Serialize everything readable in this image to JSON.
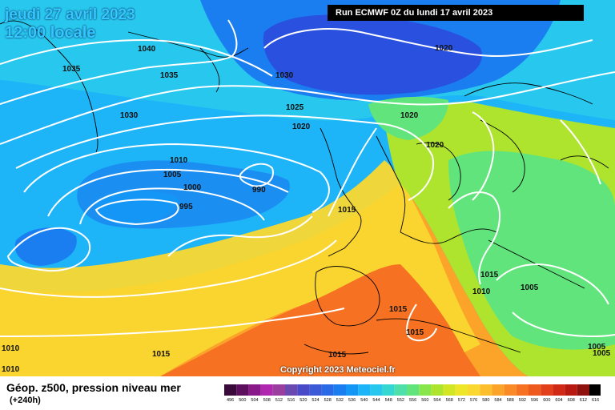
{
  "header": {
    "date_line1": "jeudi 27 avril 2023",
    "date_line2": "12:00 locale",
    "run_info": "Run ECMWF 0Z du lundi 17 avril 2023"
  },
  "footer": {
    "variable": "Géop. z500, pression niveau mer",
    "range": "(+240h)",
    "copyright": "Copyright 2023 Meteociel.fr"
  },
  "isobar_labels": [
    {
      "text": "1040"
    },
    {
      "text": "1035"
    },
    {
      "text": "1035"
    },
    {
      "text": "1030"
    },
    {
      "text": "1030"
    },
    {
      "text": "1025"
    },
    {
      "text": "1020"
    },
    {
      "text": "1020"
    },
    {
      "text": "1020"
    },
    {
      "text": "1020"
    },
    {
      "text": "1010"
    },
    {
      "text": "1005"
    },
    {
      "text": "1000"
    },
    {
      "text": "995"
    },
    {
      "text": "990"
    },
    {
      "text": "1015"
    },
    {
      "text": "1015"
    },
    {
      "text": "1010"
    },
    {
      "text": "1005"
    },
    {
      "text": "1015"
    },
    {
      "text": "1015"
    },
    {
      "text": "1015"
    },
    {
      "text": "1015"
    },
    {
      "text": "1010"
    },
    {
      "text": "1010"
    },
    {
      "text": "1005"
    },
    {
      "text": "1005"
    }
  ],
  "scale": {
    "values": [
      "496",
      "500",
      "504",
      "508",
      "512",
      "516",
      "520",
      "524",
      "528",
      "532",
      "536",
      "540",
      "544",
      "548",
      "552",
      "556",
      "560",
      "564",
      "568",
      "572",
      "576",
      "580",
      "584",
      "588",
      "592",
      "596",
      "600",
      "604",
      "608",
      "612",
      "616"
    ],
    "colors": [
      "#3a0a3a",
      "#5c0f5c",
      "#8a198a",
      "#b028b0",
      "#9a3ea0",
      "#6a4ab0",
      "#4a4ac8",
      "#3c5ad8",
      "#2a6ae6",
      "#1a7ef0",
      "#1496f6",
      "#1eb4f8",
      "#28c8ee",
      "#34d8d0",
      "#4ee0a8",
      "#62e47c",
      "#86e64c",
      "#aee42e",
      "#d2e626",
      "#eee628",
      "#fad830",
      "#fcbe2c",
      "#fca42a",
      "#fa8a26",
      "#f67222",
      "#ee5a1e",
      "#e2401a",
      "#d02a16",
      "#b81a12",
      "#90120e",
      "#000000"
    ]
  }
}
